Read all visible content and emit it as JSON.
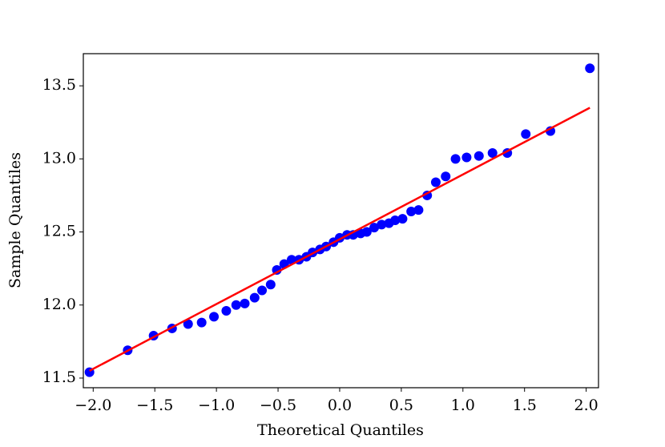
{
  "chart_data": {
    "type": "scatter",
    "xlabel": "Theoretical Quantiles",
    "ylabel": "Sample Quantiles",
    "xlim": [
      -2.08,
      2.1
    ],
    "ylim": [
      11.434,
      13.72
    ],
    "xticks": [
      {
        "value": -2,
        "label": "−2.0"
      },
      {
        "value": -1.5,
        "label": "−1.5"
      },
      {
        "value": -1,
        "label": "−1.0"
      },
      {
        "value": -0.5,
        "label": "−0.5"
      },
      {
        "value": 0,
        "label": "0.0"
      },
      0.5,
      {
        "value": 1,
        "label": "1.0"
      },
      1.5,
      {
        "value": 2,
        "label": "2.0"
      }
    ],
    "yticks": [
      11.5,
      {
        "value": 12,
        "label": "12.0"
      },
      12.5,
      {
        "value": 13,
        "label": "13.0"
      },
      13.5
    ],
    "series": [
      {
        "color": "#0000ff",
        "x": [
          -2.03,
          -1.72,
          -1.51,
          -1.36,
          -1.23,
          -1.12,
          -1.02,
          -0.92,
          -0.84,
          -0.77,
          -0.69,
          -0.63,
          -0.56,
          -0.51,
          -0.45,
          -0.39,
          -0.33,
          -0.27,
          -0.22,
          -0.16,
          -0.11,
          -0.05,
          0,
          0.06,
          0.11,
          0.17,
          0.22,
          0.28,
          0.34,
          0.4,
          0.45,
          0.51,
          0.58,
          0.64,
          0.71,
          0.78,
          0.86,
          0.94,
          1.03,
          1.13,
          1.24,
          1.36,
          1.51,
          1.71,
          2.03
        ],
        "values": [
          11.54,
          11.69,
          11.79,
          11.84,
          11.87,
          11.88,
          11.92,
          11.96,
          12.0,
          12.01,
          12.05,
          12.1,
          12.14,
          12.24,
          12.28,
          12.31,
          12.31,
          12.33,
          12.36,
          12.38,
          12.4,
          12.43,
          12.46,
          12.48,
          12.48,
          12.49,
          12.5,
          12.53,
          12.55,
          12.56,
          12.58,
          12.59,
          12.64,
          12.65,
          12.75,
          12.84,
          12.88,
          13.0,
          13.01,
          13.02,
          13.04,
          13.04,
          13.17,
          13.19,
          13.62
        ]
      },
      {
        "type": "line",
        "color": "#ff0000",
        "x": [
          -2.03,
          2.03
        ],
        "values": [
          11.55,
          13.35
        ]
      }
    ]
  }
}
